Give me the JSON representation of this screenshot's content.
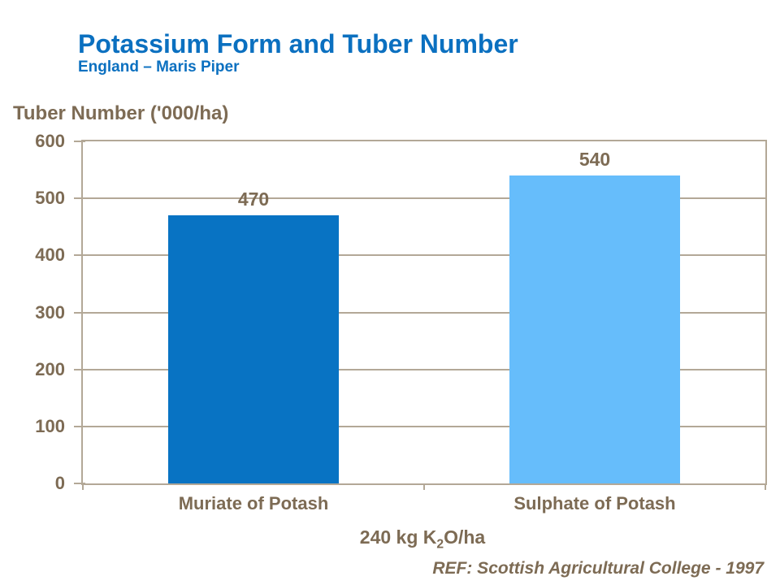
{
  "slide": {
    "title": "Potassium Form and Tuber Number",
    "subtitle": "England – Maris Piper",
    "ref_note": "REF: Scottish Agricultural College - 1997"
  },
  "colors": {
    "title_blue": "#0B70C0",
    "text_brown": "#7D6B54",
    "grid_taupe": "#B3A897",
    "bar_dark_blue": "#0873C3",
    "bar_light_blue": "#66BDFB",
    "background": "#FFFFFF"
  },
  "chart_data": {
    "type": "bar",
    "title": "Potassium Form and Tuber Number",
    "subtitle": "England – Maris Piper",
    "ylabel": "Tuber Number ('000/ha)",
    "xlabel": "240 kg K2O/ha",
    "xlabel_parts": {
      "pre": "240 kg K",
      "sub": "2",
      "post": "O/ha"
    },
    "categories": [
      "Muriate of Potash",
      "Sulphate of Potash"
    ],
    "values": [
      470,
      540
    ],
    "value_labels": [
      "470",
      "540"
    ],
    "bar_colors": [
      "#0873C3",
      "#66BDFB"
    ],
    "ylim": [
      0,
      600
    ],
    "yticks": [
      0,
      100,
      200,
      300,
      400,
      500,
      600
    ],
    "grid": true,
    "legend": "none",
    "source": "REF: Scottish Agricultural College - 1997"
  }
}
